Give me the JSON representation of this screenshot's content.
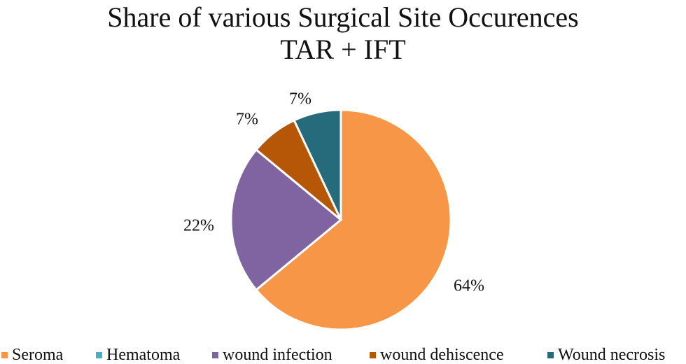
{
  "chart_data": {
    "type": "pie",
    "title": "Share of various Surgical Site Occurences",
    "subtitle": "TAR + IFT",
    "categories": [
      "Seroma",
      "Hematoma",
      "wound infection",
      "wound dehiscence",
      "Wound necrosis"
    ],
    "values": [
      64,
      0,
      22,
      7,
      7
    ],
    "data_labels": [
      "64%",
      "",
      "22%",
      "7%",
      "7%"
    ],
    "colors": [
      "#F79646",
      "#4BACC6",
      "#8064A2",
      "#B65708",
      "#256B7C"
    ],
    "legend_position": "bottom"
  }
}
